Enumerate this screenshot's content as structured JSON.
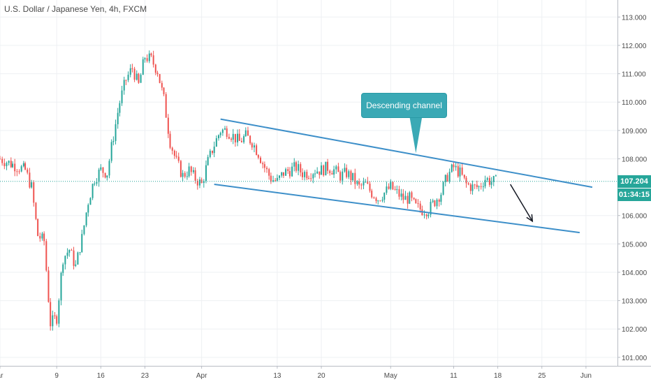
{
  "chart_data": {
    "type": "candlestick",
    "title": "U.S. Dollar / Japanese Yen, 4h, FXCM",
    "y_ticks": [
      "113.000",
      "112.000",
      "111.000",
      "110.000",
      "109.000",
      "108.000",
      "106.000",
      "105.000",
      "104.000",
      "103.000",
      "102.000",
      "101.000"
    ],
    "ylim": [
      100.7,
      113.6
    ],
    "x_ticks": [
      {
        "label": "ar",
        "x": 0
      },
      {
        "label": "9",
        "x": 9
      },
      {
        "label": "16",
        "x": 16
      },
      {
        "label": "23",
        "x": 23
      },
      {
        "label": "Apr",
        "x": 32
      },
      {
        "label": "13",
        "x": 44
      },
      {
        "label": "20",
        "x": 51
      },
      {
        "label": "May",
        "x": 62
      },
      {
        "label": "11",
        "x": 72
      },
      {
        "label": "18",
        "x": 79
      },
      {
        "label": "25",
        "x": 86
      },
      {
        "label": "Jun",
        "x": 93
      }
    ],
    "xlim": [
      0,
      98
    ],
    "price_path": [
      [
        0,
        108.0
      ],
      [
        2,
        107.8
      ],
      [
        4,
        107.6
      ],
      [
        5,
        107.0
      ],
      [
        6,
        105.3
      ],
      [
        7,
        105.1
      ],
      [
        8,
        102.2
      ],
      [
        9,
        102.4
      ],
      [
        10,
        104.5
      ],
      [
        11,
        104.8
      ],
      [
        12,
        104.2
      ],
      [
        13,
        105.2
      ],
      [
        14,
        106.5
      ],
      [
        15,
        107.3
      ],
      [
        16,
        107.6
      ],
      [
        17,
        107.5
      ],
      [
        18,
        108.8
      ],
      [
        19,
        110.0
      ],
      [
        20,
        110.8
      ],
      [
        21,
        111.2
      ],
      [
        22,
        110.6
      ],
      [
        23,
        111.6
      ],
      [
        24,
        111.5
      ],
      [
        25,
        111.1
      ],
      [
        26,
        110.1
      ],
      [
        27,
        108.6
      ],
      [
        28,
        107.9
      ],
      [
        29,
        107.4
      ],
      [
        30,
        107.6
      ],
      [
        31,
        107.3
      ],
      [
        32,
        107.1
      ],
      [
        33,
        107.9
      ],
      [
        34,
        108.5
      ],
      [
        35,
        109.0
      ],
      [
        36,
        109.0
      ],
      [
        37,
        108.8
      ],
      [
        38,
        108.6
      ],
      [
        39,
        108.8
      ],
      [
        40,
        108.6
      ],
      [
        41,
        108.2
      ],
      [
        42,
        107.7
      ],
      [
        43,
        107.3
      ],
      [
        44,
        107.2
      ],
      [
        45,
        107.5
      ],
      [
        46,
        107.6
      ],
      [
        47,
        107.7
      ],
      [
        48,
        107.5
      ],
      [
        49,
        107.5
      ],
      [
        50,
        107.6
      ],
      [
        51,
        107.6
      ],
      [
        52,
        107.7
      ],
      [
        53,
        107.6
      ],
      [
        54,
        107.4
      ],
      [
        55,
        107.5
      ],
      [
        56,
        107.3
      ],
      [
        57,
        107.0
      ],
      [
        58,
        107.1
      ],
      [
        59,
        106.8
      ],
      [
        60,
        106.6
      ],
      [
        61,
        106.8
      ],
      [
        62,
        107.0
      ],
      [
        63,
        106.8
      ],
      [
        64,
        106.6
      ],
      [
        65,
        106.6
      ],
      [
        66,
        106.3
      ],
      [
        67,
        106.2
      ],
      [
        68,
        106.2
      ],
      [
        69,
        106.5
      ],
      [
        70,
        106.8
      ],
      [
        71,
        107.4
      ],
      [
        72,
        107.7
      ],
      [
        73,
        107.5
      ],
      [
        74,
        107.1
      ],
      [
        75,
        107.0
      ],
      [
        76,
        107.0
      ],
      [
        77,
        107.3
      ],
      [
        78,
        107.2
      ],
      [
        79,
        107.2
      ]
    ],
    "channel": {
      "upper": {
        "from": [
          35,
          109.4
        ],
        "to": [
          94,
          107.0
        ]
      },
      "lower": {
        "from": [
          34,
          107.1
        ],
        "to": [
          92,
          105.4
        ]
      }
    },
    "projection_arrow": {
      "from": [
        81,
        107.1
      ],
      "to": [
        84.5,
        105.8
      ]
    },
    "annotation": {
      "text": "Descending channel",
      "anchor": [
        66,
        108.2
      ]
    },
    "current_price": "107.204",
    "countdown": "01:34:15",
    "current_price_value": 107.204,
    "colors": {
      "up": "#26a69a",
      "down": "#ef5350",
      "channel": "#3d8fc9",
      "badge": "#26a69a",
      "callout": "#3aa9b5",
      "grid": "#eef0f3",
      "arrow": "#131722"
    }
  }
}
